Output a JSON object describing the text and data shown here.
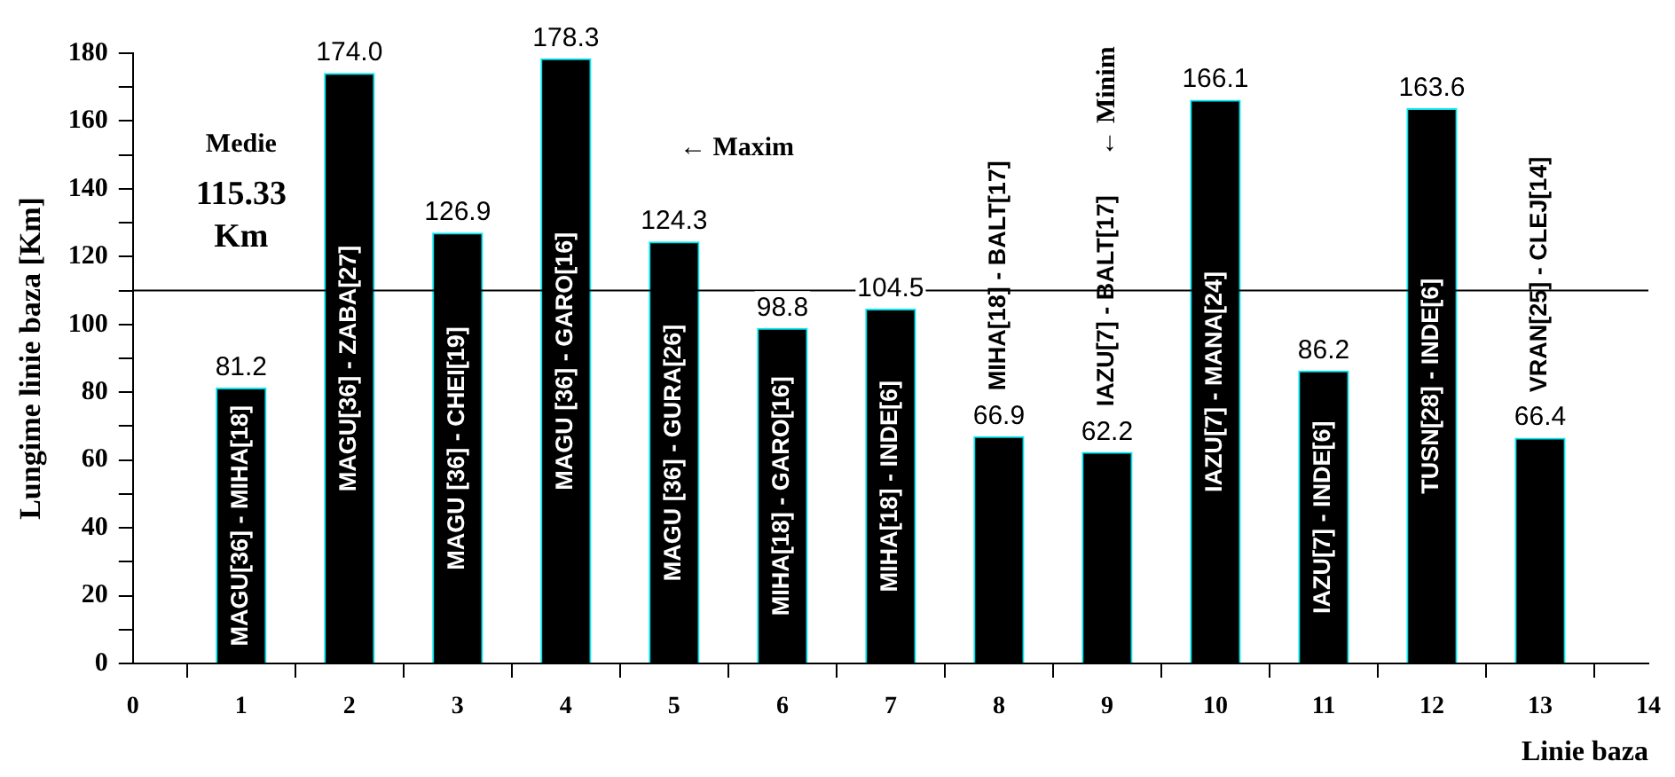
{
  "chart_data": {
    "type": "bar",
    "xlabel": "Linie baza",
    "ylabel": "Lungime linie baza [Km]",
    "x": [
      1,
      2,
      3,
      4,
      5,
      6,
      7,
      8,
      9,
      10,
      11,
      12,
      13
    ],
    "values": [
      81.2,
      174.0,
      126.9,
      178.3,
      124.3,
      98.8,
      104.5,
      66.9,
      62.2,
      166.1,
      86.2,
      163.6,
      66.4
    ],
    "value_labels": [
      "81.2",
      "174.0",
      "126.9",
      "178.3",
      "124.3",
      "98.8",
      "104.5",
      "66.9",
      "62.2",
      "166.1",
      "86.2",
      "163.6",
      "66.4"
    ],
    "color": "#000000",
    "xlim": [
      0,
      14
    ],
    "xticks": [
      0,
      1,
      2,
      3,
      4,
      5,
      6,
      7,
      8,
      9,
      10,
      11,
      12,
      13,
      14
    ],
    "ylim": [
      0,
      180
    ],
    "yticks": [
      0,
      {
        "value": 10,
        "label": null
      },
      20,
      {
        "value": 30,
        "label": null
      },
      40,
      {
        "value": 50,
        "label": null
      },
      60,
      {
        "value": 70,
        "label": null
      },
      80,
      {
        "value": 90,
        "label": null
      },
      100,
      {
        "value": 110,
        "label": null
      },
      120,
      {
        "value": 130,
        "label": null
      },
      140,
      {
        "value": 150,
        "label": null
      },
      160,
      {
        "value": 170,
        "label": null
      },
      180
    ],
    "grid": false,
    "legend": false,
    "ref_lines": [
      {
        "axis": "y",
        "value": 110
      }
    ],
    "annotations": [
      "Medie",
      "115.33 Km",
      "← Maxim",
      "← Minim",
      "MAGU[36] - MIHA[18]",
      "MAGU[36] - ZABA[27]",
      "MAGU [36] - CHEI[19]",
      "MAGU [36] - GARO[16]",
      "MAGU [36] - GURA[26]",
      "MIHA[18] - GARO[16]",
      "MIHA[18] - INDE[6]",
      "MIHA[18] - BALT[17]",
      "IAZU[7] - BALT[17]",
      "IAZU[7] - MANA[24]",
      "IAZU[7] - INDE[6]",
      "TUSN[28] - INDE[6]",
      "VRAN[25] - CLEJ[14]"
    ]
  }
}
